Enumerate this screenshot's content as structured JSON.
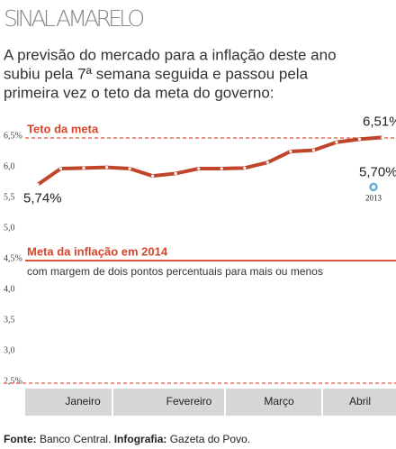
{
  "chart_data": {
    "type": "line",
    "title": "SINAL AMARELO",
    "subtitle": [
      "A previsão do mercado para a inflação deste ano",
      "subiu pela 7ª semana seguida e passou pela",
      "primeira vez o teto da meta do governo:"
    ],
    "values": [
      5.74,
      6.0,
      6.01,
      6.02,
      6.0,
      5.88,
      5.92,
      6.0,
      6.0,
      6.01,
      6.1,
      6.28,
      6.3,
      6.43,
      6.48,
      6.51
    ],
    "value_labels": {
      "0": "5,74%",
      "15": "6,51%"
    },
    "color": "#c0452a",
    "months": [
      "Janeiro",
      "Fevereiro",
      "Março",
      "Abril"
    ],
    "ylim": [
      2.5,
      6.5
    ],
    "yticks": [
      {
        "value": 6.5,
        "label": "6,5%"
      },
      {
        "value": 6.0,
        "label": "6,0"
      },
      {
        "value": 5.5,
        "label": "5,5"
      },
      {
        "value": 5.0,
        "label": "5,0"
      },
      {
        "value": 4.5,
        "label": "4,5%"
      },
      {
        "value": 4.0,
        "label": "4,0"
      },
      {
        "value": 3.5,
        "label": "3,5"
      },
      {
        "value": 3.0,
        "label": "3,0"
      },
      {
        "value": 2.5,
        "label": "2,5%"
      }
    ],
    "reference_lines": [
      {
        "value": 6.5,
        "label": "Teto da meta",
        "style": "dashed"
      },
      {
        "value": 4.5,
        "label": "Meta da inflação em 2014",
        "sublabel": "com margem de dois pontos percentuais para mais ou menos",
        "style": "solid"
      },
      {
        "value": 2.5,
        "style": "dashed"
      }
    ],
    "comparison": {
      "value": 5.7,
      "label": "5,70%",
      "year": "2013",
      "color": "#6aaed6"
    },
    "source": [
      {
        "label": "Fonte:",
        "text": " Banco Central. "
      },
      {
        "label": "Infografia:",
        "text": " Gazeta do Povo."
      }
    ]
  }
}
